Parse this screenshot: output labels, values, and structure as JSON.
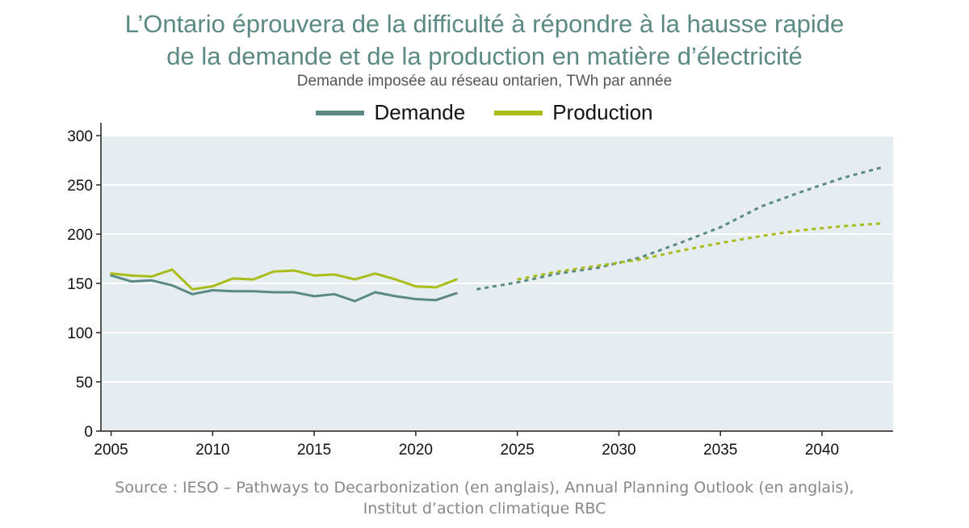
{
  "chart_data": {
    "type": "line",
    "title_line1": "L’Ontario éprouvera de la difficulté à répondre à la hausse rapide",
    "title_line2": "de la demande et de la production en matière d’électricité",
    "subtitle": "Demande imposée au réseau ontarien, TWh par année",
    "xlabel": "",
    "ylabel": "",
    "xlim": [
      2004.5,
      2043.5
    ],
    "ylim": [
      0,
      300
    ],
    "x_ticks": [
      2005,
      2010,
      2015,
      2020,
      2025,
      2030,
      2035,
      2040
    ],
    "y_ticks": [
      0,
      50,
      100,
      150,
      200,
      250,
      300
    ],
    "grid": true,
    "legend_position": "top-center",
    "series": [
      {
        "name": "Demande",
        "color": "#5a8a83",
        "historical": {
          "x": [
            2005,
            2006,
            2007,
            2008,
            2009,
            2010,
            2011,
            2012,
            2013,
            2014,
            2015,
            2016,
            2017,
            2018,
            2019,
            2020,
            2021,
            2022
          ],
          "y": [
            158,
            152,
            153,
            148,
            139,
            143,
            142,
            142,
            141,
            141,
            137,
            139,
            132,
            141,
            137,
            134,
            133,
            140
          ]
        },
        "projection": {
          "x": [
            2023,
            2025,
            2027,
            2029,
            2031,
            2033,
            2035,
            2037,
            2039,
            2041,
            2043
          ],
          "y": [
            144,
            151,
            160,
            166,
            176,
            191,
            207,
            228,
            243,
            257,
            268
          ]
        }
      },
      {
        "name": "Production",
        "color": "#a9bc1a",
        "historical": {
          "x": [
            2005,
            2006,
            2007,
            2008,
            2009,
            2010,
            2011,
            2012,
            2013,
            2014,
            2015,
            2016,
            2017,
            2018,
            2019,
            2020,
            2021,
            2022
          ],
          "y": [
            160,
            158,
            157,
            164,
            144,
            147,
            155,
            154,
            162,
            163,
            158,
            159,
            154,
            160,
            154,
            147,
            146,
            154
          ]
        },
        "projection": {
          "x": [
            2025,
            2027,
            2029,
            2031,
            2033,
            2035,
            2037,
            2039,
            2041,
            2043
          ],
          "y": [
            154,
            162,
            168,
            174,
            183,
            191,
            198,
            204,
            208,
            211
          ]
        }
      }
    ],
    "colors": {
      "plot_background": "#e6edf0",
      "gridline": "#ffffff",
      "axis": "#222222",
      "title": "#5a8a83"
    }
  },
  "source_line1": "Source : IESO – Pathways to Decarbonization (en anglais), Annual Planning Outlook (en anglais),",
  "source_line2": "Institut d’action climatique RBC"
}
